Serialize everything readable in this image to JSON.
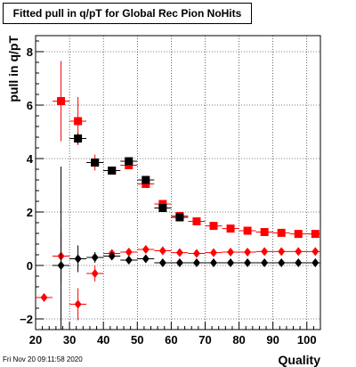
{
  "chart_data": {
    "type": "scatter",
    "title": "Fitted pull in q/pT  for Global Rec Pion NoHits",
    "xlabel": "Quality",
    "ylabel": "pull in q/pT",
    "xlim": [
      20,
      104
    ],
    "ylim": [
      -2.4,
      8.6
    ],
    "x_ticks": [
      "20",
      "30",
      "40",
      "50",
      "60",
      "70",
      "80",
      "90",
      "100"
    ],
    "y_ticks": [
      "−2",
      "0",
      "2",
      "4",
      "6",
      "8"
    ],
    "grid": true,
    "series": [
      {
        "marker": "square",
        "color": "#ff0000",
        "points": [
          {
            "x": 27.5,
            "y": 6.15,
            "err": 1.5
          },
          {
            "x": 32.5,
            "y": 5.4,
            "err": 0.9
          },
          {
            "x": 37.5,
            "y": 3.85,
            "err": 0.3
          },
          {
            "x": 42.5,
            "y": 3.55,
            "err": 0.15
          },
          {
            "x": 47.5,
            "y": 3.75,
            "err": 0.1
          },
          {
            "x": 52.5,
            "y": 3.05,
            "err": 0.08
          },
          {
            "x": 57.5,
            "y": 2.3,
            "err": 0.06
          },
          {
            "x": 62.5,
            "y": 1.85,
            "err": 0.05
          },
          {
            "x": 67.5,
            "y": 1.65,
            "err": 0.04
          },
          {
            "x": 72.5,
            "y": 1.48,
            "err": 0.03
          },
          {
            "x": 77.5,
            "y": 1.38,
            "err": 0.03
          },
          {
            "x": 82.5,
            "y": 1.3,
            "err": 0.03
          },
          {
            "x": 87.5,
            "y": 1.25,
            "err": 0.03
          },
          {
            "x": 92.5,
            "y": 1.22,
            "err": 0.03
          },
          {
            "x": 97.5,
            "y": 1.18,
            "err": 0.03
          },
          {
            "x": 102.5,
            "y": 1.18,
            "err": 0.03
          }
        ]
      },
      {
        "marker": "square",
        "color": "#000000",
        "points": [
          {
            "x": 32.5,
            "y": 4.75,
            "err": 0.2
          },
          {
            "x": 37.5,
            "y": 3.85,
            "err": 0.1
          },
          {
            "x": 42.5,
            "y": 3.55,
            "err": 0.05
          },
          {
            "x": 47.5,
            "y": 3.9,
            "err": 0.05
          },
          {
            "x": 52.5,
            "y": 3.2,
            "err": 0.05
          },
          {
            "x": 57.5,
            "y": 2.15,
            "err": 0.05
          },
          {
            "x": 62.5,
            "y": 1.8,
            "err": 0.03
          }
        ]
      },
      {
        "marker": "diamond",
        "color": "#ff0000",
        "points": [
          {
            "x": 22.5,
            "y": -1.2,
            "err": 0
          },
          {
            "x": 27.5,
            "y": 0.35,
            "err": 1.0
          },
          {
            "x": 32.5,
            "y": -1.45,
            "err": 0.6
          },
          {
            "x": 37.5,
            "y": -0.3,
            "err": 0.3
          },
          {
            "x": 42.5,
            "y": 0.45,
            "err": 0.1
          },
          {
            "x": 47.5,
            "y": 0.5,
            "err": 0.08
          },
          {
            "x": 52.5,
            "y": 0.6,
            "err": 0.05
          },
          {
            "x": 57.5,
            "y": 0.55,
            "err": 0.04
          },
          {
            "x": 62.5,
            "y": 0.48,
            "err": 0.03
          },
          {
            "x": 67.5,
            "y": 0.45,
            "err": 0.03
          },
          {
            "x": 72.5,
            "y": 0.48,
            "err": 0.03
          },
          {
            "x": 77.5,
            "y": 0.5,
            "err": 0.02
          },
          {
            "x": 82.5,
            "y": 0.5,
            "err": 0.02
          },
          {
            "x": 87.5,
            "y": 0.52,
            "err": 0.02
          },
          {
            "x": 92.5,
            "y": 0.52,
            "err": 0.02
          },
          {
            "x": 97.5,
            "y": 0.52,
            "err": 0.02
          },
          {
            "x": 102.5,
            "y": 0.52,
            "err": 0.02
          }
        ]
      },
      {
        "marker": "diamond",
        "color": "#000000",
        "points": [
          {
            "x": 27.5,
            "y": 0.0,
            "err": 3.7
          },
          {
            "x": 32.5,
            "y": 0.25,
            "err": 0.5
          },
          {
            "x": 37.5,
            "y": 0.3,
            "err": 0.2
          },
          {
            "x": 42.5,
            "y": 0.35,
            "err": 0.1
          },
          {
            "x": 47.5,
            "y": 0.2,
            "err": 0.05
          },
          {
            "x": 52.5,
            "y": 0.25,
            "err": 0.04
          },
          {
            "x": 57.5,
            "y": 0.1,
            "err": 0.03
          },
          {
            "x": 62.5,
            "y": 0.1,
            "err": 0.02
          },
          {
            "x": 67.5,
            "y": 0.1,
            "err": 0.02
          },
          {
            "x": 72.5,
            "y": 0.1,
            "err": 0.02
          },
          {
            "x": 77.5,
            "y": 0.1,
            "err": 0.02
          },
          {
            "x": 82.5,
            "y": 0.1,
            "err": 0.02
          },
          {
            "x": 87.5,
            "y": 0.1,
            "err": 0.02
          },
          {
            "x": 92.5,
            "y": 0.1,
            "err": 0.02
          },
          {
            "x": 97.5,
            "y": 0.1,
            "err": 0.02
          },
          {
            "x": 102.5,
            "y": 0.1,
            "err": 0.02
          }
        ]
      }
    ]
  },
  "footer": {
    "datestamp": "Fri Nov 20 09:11:58 2020"
  }
}
